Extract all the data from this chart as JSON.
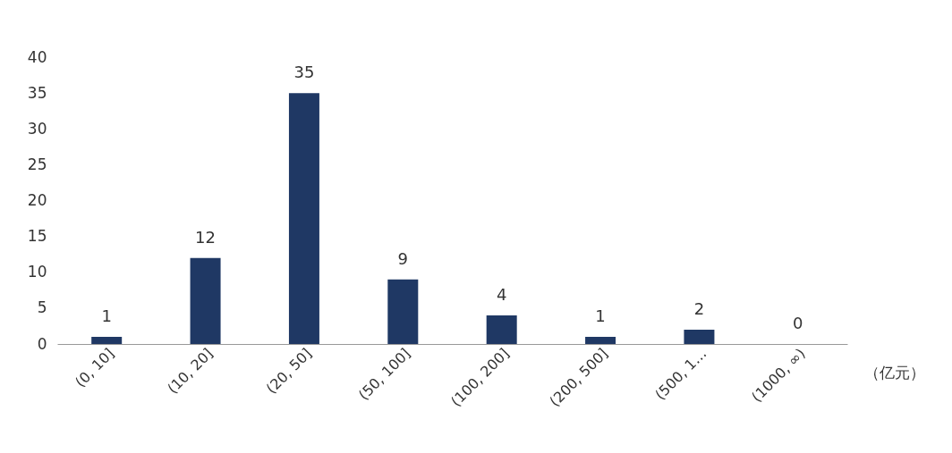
{
  "chart_data": {
    "type": "bar",
    "xlabel": "（亿元）",
    "categories": [
      "(0, 10]",
      "(10, 20]",
      "(20, 50]",
      "(50, 100]",
      "(100, 200]",
      "(200, 500]",
      "(500, 1…",
      "(1000, ∞)"
    ],
    "values": [
      1,
      12,
      35,
      9,
      4,
      1,
      2,
      0
    ],
    "color": "#1f3864",
    "ylim": [
      0,
      40
    ],
    "yticks": [
      0,
      5,
      10,
      15,
      20,
      25,
      30,
      35,
      40
    ],
    "grid": false,
    "data_labels": true
  }
}
